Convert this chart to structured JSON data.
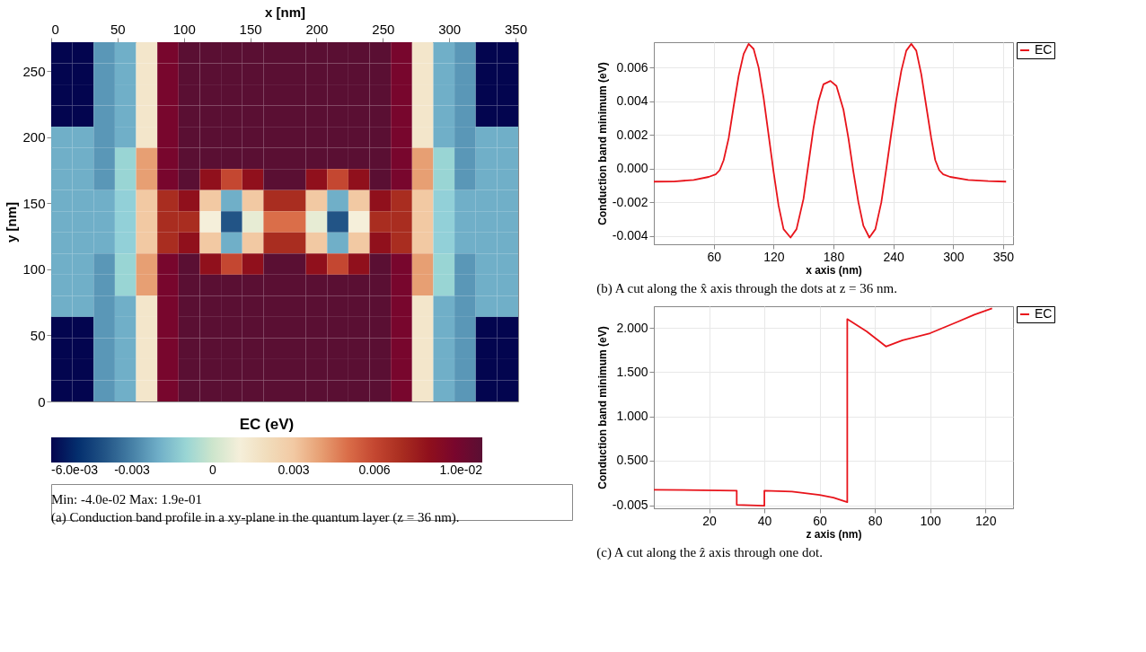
{
  "chart_data": [
    {
      "type": "heatmap",
      "xlabel": "x [nm]",
      "ylabel": "y [nm]",
      "clabel": "EC (eV)",
      "xlim": [
        0,
        352
      ],
      "xticks": [
        0,
        50,
        100,
        150,
        200,
        250,
        300,
        350
      ],
      "ylim": [
        0,
        272
      ],
      "yticks": [
        0,
        50,
        100,
        150,
        200,
        250
      ],
      "clim": [
        -0.006,
        0.01
      ],
      "cticks": [
        {
          "value": -0.006,
          "label": "-6.0e-03"
        },
        -0.003,
        0,
        0.003,
        0.006,
        {
          "value": 0.01,
          "label": "1.0e-02"
        }
      ],
      "cells": [
        [
          -0.006,
          -0.006,
          -0.0025,
          -0.002,
          0.0015,
          0.009,
          0.01,
          0.01,
          0.01,
          0.01,
          0.01,
          0.01,
          0.01,
          0.01,
          0.01,
          0.01,
          0.009,
          0.0015,
          -0.002,
          -0.0025,
          -0.006,
          -0.006
        ],
        [
          -0.006,
          -0.006,
          -0.0025,
          -0.002,
          0.0015,
          0.009,
          0.01,
          0.01,
          0.01,
          0.01,
          0.01,
          0.01,
          0.01,
          0.01,
          0.01,
          0.01,
          0.009,
          0.0015,
          -0.002,
          -0.0025,
          -0.006,
          -0.006
        ],
        [
          -0.006,
          -0.006,
          -0.0025,
          -0.002,
          0.0015,
          0.009,
          0.01,
          0.01,
          0.01,
          0.01,
          0.01,
          0.01,
          0.01,
          0.01,
          0.01,
          0.01,
          0.009,
          0.0015,
          -0.002,
          -0.0025,
          -0.006,
          -0.006
        ],
        [
          -0.006,
          -0.006,
          -0.0025,
          -0.002,
          0.0015,
          0.009,
          0.01,
          0.01,
          0.01,
          0.01,
          0.01,
          0.01,
          0.01,
          0.01,
          0.01,
          0.01,
          0.009,
          0.0015,
          -0.002,
          -0.0025,
          -0.006,
          -0.006
        ],
        [
          -0.002,
          -0.002,
          -0.0025,
          -0.002,
          0.0015,
          0.009,
          0.01,
          0.01,
          0.01,
          0.01,
          0.01,
          0.01,
          0.01,
          0.01,
          0.01,
          0.01,
          0.009,
          0.0015,
          -0.002,
          -0.0025,
          -0.002,
          -0.002
        ],
        [
          -0.002,
          -0.002,
          -0.0025,
          -0.001,
          0.004,
          0.009,
          0.01,
          0.01,
          0.01,
          0.01,
          0.01,
          0.01,
          0.01,
          0.01,
          0.01,
          0.01,
          0.009,
          0.004,
          -0.001,
          -0.0025,
          -0.002,
          -0.002
        ],
        [
          -0.002,
          -0.002,
          -0.0025,
          -0.001,
          0.004,
          0.009,
          0.01,
          0.008,
          0.006,
          0.008,
          0.01,
          0.01,
          0.008,
          0.006,
          0.008,
          0.01,
          0.009,
          0.004,
          -0.001,
          -0.0025,
          -0.002,
          -0.002
        ],
        [
          -0.002,
          -0.002,
          -0.002,
          -0.0012,
          0.003,
          0.007,
          0.008,
          0.003,
          -0.002,
          0.003,
          0.007,
          0.007,
          0.003,
          -0.002,
          0.003,
          0.008,
          0.007,
          0.003,
          -0.0012,
          -0.002,
          -0.002,
          -0.002
        ],
        [
          -0.002,
          -0.002,
          -0.002,
          -0.0012,
          0.003,
          0.007,
          0.007,
          0.001,
          -0.004,
          0.0005,
          0.005,
          0.005,
          0.0005,
          -0.004,
          0.001,
          0.007,
          0.007,
          0.003,
          -0.0012,
          -0.002,
          -0.002,
          -0.002
        ],
        [
          -0.002,
          -0.002,
          -0.002,
          -0.0012,
          0.003,
          0.007,
          0.008,
          0.003,
          -0.002,
          0.003,
          0.007,
          0.007,
          0.003,
          -0.002,
          0.003,
          0.008,
          0.007,
          0.003,
          -0.0012,
          -0.002,
          -0.002,
          -0.002
        ],
        [
          -0.002,
          -0.002,
          -0.0025,
          -0.001,
          0.004,
          0.009,
          0.01,
          0.008,
          0.006,
          0.008,
          0.01,
          0.01,
          0.008,
          0.006,
          0.008,
          0.01,
          0.009,
          0.004,
          -0.001,
          -0.0025,
          -0.002,
          -0.002
        ],
        [
          -0.002,
          -0.002,
          -0.0025,
          -0.001,
          0.004,
          0.009,
          0.01,
          0.01,
          0.01,
          0.01,
          0.01,
          0.01,
          0.01,
          0.01,
          0.01,
          0.01,
          0.009,
          0.004,
          -0.001,
          -0.0025,
          -0.002,
          -0.002
        ],
        [
          -0.002,
          -0.002,
          -0.0025,
          -0.002,
          0.0015,
          0.009,
          0.01,
          0.01,
          0.01,
          0.01,
          0.01,
          0.01,
          0.01,
          0.01,
          0.01,
          0.01,
          0.009,
          0.0015,
          -0.002,
          -0.0025,
          -0.002,
          -0.002
        ],
        [
          -0.006,
          -0.006,
          -0.0025,
          -0.002,
          0.0015,
          0.009,
          0.01,
          0.01,
          0.01,
          0.01,
          0.01,
          0.01,
          0.01,
          0.01,
          0.01,
          0.01,
          0.009,
          0.0015,
          -0.002,
          -0.0025,
          -0.006,
          -0.006
        ],
        [
          -0.006,
          -0.006,
          -0.0025,
          -0.002,
          0.0015,
          0.009,
          0.01,
          0.01,
          0.01,
          0.01,
          0.01,
          0.01,
          0.01,
          0.01,
          0.01,
          0.01,
          0.009,
          0.0015,
          -0.002,
          -0.0025,
          -0.006,
          -0.006
        ],
        [
          -0.006,
          -0.006,
          -0.0025,
          -0.002,
          0.0015,
          0.009,
          0.01,
          0.01,
          0.01,
          0.01,
          0.01,
          0.01,
          0.01,
          0.01,
          0.01,
          0.01,
          0.009,
          0.0015,
          -0.002,
          -0.0025,
          -0.006,
          -0.006
        ],
        [
          -0.006,
          -0.006,
          -0.0025,
          -0.002,
          0.0015,
          0.009,
          0.01,
          0.01,
          0.01,
          0.01,
          0.01,
          0.01,
          0.01,
          0.01,
          0.01,
          0.01,
          0.009,
          0.0015,
          -0.002,
          -0.0025,
          -0.006,
          -0.006
        ]
      ],
      "annotations": [
        "Min: -4.0e-02  Max: 1.9e-01",
        "(a) Conduction band profile in a xy-plane in the quantum layer (z = 36 nm)."
      ]
    },
    {
      "type": "line",
      "xlabel": "x axis (nm)",
      "ylabel": "Conduction band minimum (eV)",
      "xlim": [
        0,
        360
      ],
      "xticks": [
        60,
        120,
        180,
        240,
        300,
        350
      ],
      "ylim": [
        -0.0045,
        0.0075
      ],
      "yticks": [
        -0.004,
        -0.002,
        {
          "value": 0,
          "label": "0.000"
        },
        0.002,
        0.004,
        0.006
      ],
      "grid": true,
      "legend": "top right",
      "marker": "none",
      "series": [
        {
          "name": "EC",
          "color": "#e8141b",
          "x": [
            0,
            20,
            40,
            55,
            62,
            66,
            70,
            75,
            80,
            85,
            90,
            95,
            100,
            105,
            110,
            115,
            120,
            125,
            130,
            137,
            143,
            150,
            155,
            160,
            165,
            170,
            177,
            183,
            190,
            195,
            200,
            205,
            210,
            216,
            222,
            228,
            233,
            238,
            243,
            248,
            253,
            258,
            263,
            268,
            273,
            278,
            282,
            286,
            290,
            297,
            315,
            335,
            353
          ],
          "values": [
            -0.00078,
            -0.00077,
            -0.00068,
            -0.0005,
            -0.00035,
            -0.0001,
            0.0005,
            0.0018,
            0.0037,
            0.0055,
            0.0068,
            0.0074,
            0.0071,
            0.006,
            0.0042,
            0.002,
            -0.0002,
            -0.0022,
            -0.0036,
            -0.0041,
            -0.0036,
            -0.0018,
            0.0003,
            0.0024,
            0.004,
            0.005,
            0.0052,
            0.0049,
            0.0035,
            0.0018,
            -0.0002,
            -0.002,
            -0.0034,
            -0.0041,
            -0.0036,
            -0.002,
            0.0,
            0.0021,
            0.0041,
            0.0058,
            0.007,
            0.0074,
            0.007,
            0.0056,
            0.0037,
            0.0018,
            0.0005,
            -0.0001,
            -0.00035,
            -0.0005,
            -0.00068,
            -0.00075,
            -0.00078
          ]
        }
      ],
      "annotations": [
        "(b) A cut along the x̂ axis through the dots at z = 36 nm."
      ]
    },
    {
      "type": "line",
      "xlabel": "z axis (nm)",
      "ylabel": "Conduction band minimum (eV)",
      "xlim": [
        0,
        130
      ],
      "xticks": [
        20,
        40,
        60,
        80,
        100,
        120
      ],
      "ylim": [
        -0.04,
        2.245
      ],
      "yticks": [
        -0.005,
        {
          "value": 0.5,
          "label": "0.500"
        },
        {
          "value": 1,
          "label": "1.000"
        },
        {
          "value": 1.5,
          "label": "1.500"
        },
        {
          "value": 2,
          "label": "2.000"
        }
      ],
      "grid": true,
      "legend": "top right",
      "marker": "none",
      "series": [
        {
          "name": "EC",
          "color": "#e8141b",
          "x": [
            0,
            30,
            30,
            40,
            40,
            50,
            60,
            65,
            70,
            70,
            77,
            84,
            90,
            100,
            110,
            116,
            122.4
          ],
          "values": [
            0.17,
            0.16,
            0.0,
            -0.01,
            0.16,
            0.15,
            0.11,
            0.08,
            0.03,
            2.1,
            1.96,
            1.79,
            1.86,
            1.94,
            2.07,
            2.15,
            2.22
          ]
        }
      ],
      "annotations": [
        "(c) A cut along the ẑ axis through one dot."
      ]
    }
  ]
}
